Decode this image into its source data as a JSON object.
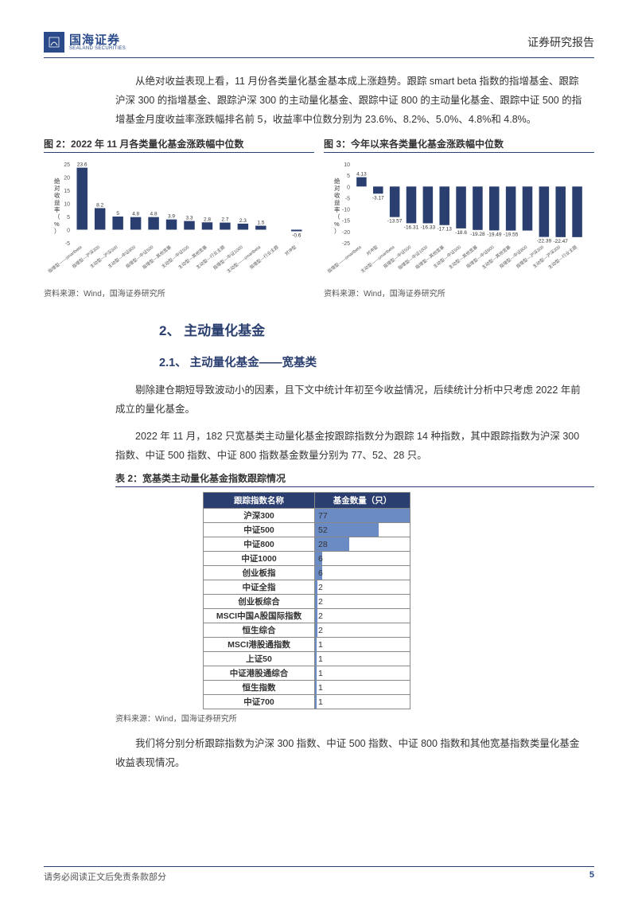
{
  "header": {
    "logo_cn": "国海证券",
    "logo_en": "SEALAND SECURITIES",
    "right": "证券研究报告"
  },
  "para1": "从绝对收益表现上看，11 月份各类量化基金基本成上涨趋势。跟踪 smart beta 指数的指增基金、跟踪沪深 300 的指增基金、跟踪沪深 300 的主动量化基金、跟踪中证 800 的主动量化基金、跟踪中证 500 的指增基金月度收益率涨跌幅排名前 5，收益率中位数分别为 23.6%、8.2%、5.0%、4.8%和 4.8%。",
  "chart2": {
    "title": "图 2：2022 年 11 月各类量化基金涨跌幅中位数",
    "type": "bar",
    "ylabel": "绝对收益率（%）",
    "ylim": [
      -5,
      25
    ],
    "yticks": [
      -5,
      0,
      5,
      10,
      15,
      20,
      25
    ],
    "categories": [
      "指增型——smartbeta",
      "指增型—沪深300",
      "主动型—沪深300",
      "主动型—中证800",
      "指增型—中证500",
      "指增型—其他宽基",
      "主动型—中证500",
      "主动型—其他宽基",
      "主动型—行业主题",
      "指增型—中证1000",
      "主动型——smartbeta",
      "指增型—行业主题",
      "对冲型"
    ],
    "values": [
      23.6,
      8.2,
      5.0,
      4.8,
      4.8,
      3.9,
      3.3,
      2.8,
      2.7,
      2.3,
      1.5,
      0,
      -0.6
    ],
    "show_labels": [
      23.6,
      8.2,
      5.0,
      4.8,
      4.8,
      3.9,
      3.3,
      2.8,
      2.7,
      2.3,
      1.5,
      null,
      -0.6
    ],
    "bar_color": "#2a3f6f",
    "source": "资料来源：Wind，国海证券研究所"
  },
  "chart3": {
    "title": "图 3：今年以来各类量化基金涨跌幅中位数",
    "type": "bar",
    "ylabel": "绝对收益率（%）",
    "ylim": [
      -25,
      10
    ],
    "yticks": [
      -25,
      -20,
      -15,
      -10,
      -5,
      0,
      5,
      10
    ],
    "categories": [
      "指增型——smartbeta",
      "对冲型",
      "主动型——smartbeta",
      "指增型—中证500",
      "指增型—中证1000",
      "指增型—其他宽基",
      "主动型—中证500",
      "主动型—其他宽基",
      "指增型—中证800",
      "主动型—其他宽基",
      "指增型—中证800",
      "指增型—沪深300",
      "主动型—沪深300",
      "主动型—行业主题"
    ],
    "values": [
      4.13,
      -3.17,
      -13.57,
      -16.31,
      -16.33,
      -17.13,
      -18.6,
      -19.28,
      -19.49,
      -19.55,
      -19.55,
      -22.39,
      -22.47,
      -22.47
    ],
    "show_labels": [
      4.13,
      -3.17,
      -13.57,
      -16.31,
      -16.33,
      -17.13,
      -18.6,
      -19.28,
      -19.49,
      -19.55,
      null,
      -22.39,
      -22.47,
      null
    ],
    "bar_color": "#2a3f6f",
    "source": "资料来源：Wind，国海证券研究所"
  },
  "section2": {
    "h1": "2、 主动量化基金",
    "h2": "2.1、 主动量化基金——宽基类"
  },
  "para2": "剔除建仓期短导致波动小的因素，且下文中统计年初至今收益情况，后续统计分析中只考虑 2022 年前成立的量化基金。",
  "para3": "2022 年 11 月，182 只宽基类主动量化基金按跟踪指数分为跟踪 14 种指数，其中跟踪指数为沪深 300 指数、中证 500 指数、中证 800 指数基金数量分别为 77、52、28 只。",
  "table2": {
    "caption": "表 2：宽基类主动量化基金指数跟踪情况",
    "col1": "跟踪指数名称",
    "col2": "基金数量（只）",
    "max": 77,
    "rows": [
      {
        "name": "沪深300",
        "val": 77
      },
      {
        "name": "中证500",
        "val": 52
      },
      {
        "name": "中证800",
        "val": 28
      },
      {
        "name": "中证1000",
        "val": 6
      },
      {
        "name": "创业板指",
        "val": 6
      },
      {
        "name": "中证全指",
        "val": 2
      },
      {
        "name": "创业板综合",
        "val": 2
      },
      {
        "name": "MSCI中国A股国际指数",
        "val": 2
      },
      {
        "name": "恒生综合",
        "val": 2
      },
      {
        "name": "MSCI港股通指数",
        "val": 1
      },
      {
        "name": "上证50",
        "val": 1
      },
      {
        "name": "中证港股通综合",
        "val": 1
      },
      {
        "name": "恒生指数",
        "val": 1
      },
      {
        "name": "中证700",
        "val": 1
      }
    ],
    "source": "资料来源：Wind，国海证券研究所"
  },
  "para4": "我们将分别分析跟踪指数为沪深 300 指数、中证 500 指数、中证 800 指数和其他宽基指数类量化基金收益表现情况。",
  "footer": {
    "left": "请务必阅读正文后免责条款部分",
    "page": "5"
  },
  "colors": {
    "brand": "#2a3f6f",
    "bar_table": "#6b8bc4"
  }
}
